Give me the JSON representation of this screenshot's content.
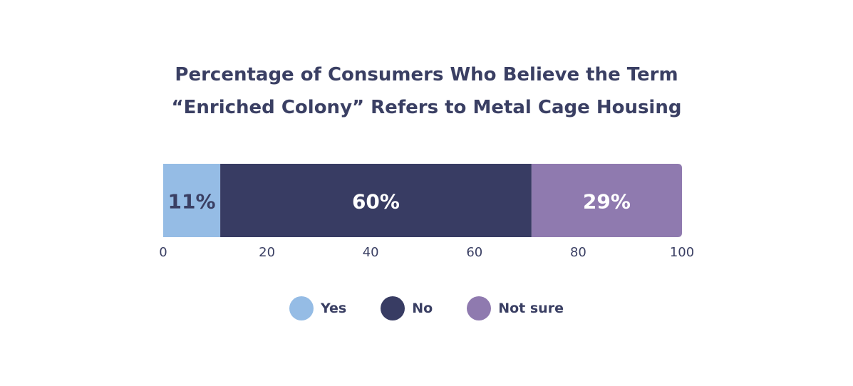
{
  "chart_data": {
    "type": "bar",
    "orientation": "horizontal",
    "stacked": true,
    "title": [
      "Percentage of Consumers Who Believe the Term",
      "“Enriched Colony” Refers to Metal Cage Housing"
    ],
    "series": [
      {
        "name": "Yes",
        "values": [
          11
        ],
        "label": "11%",
        "color": "#95bce5",
        "label_color": "#3a3f63"
      },
      {
        "name": "No",
        "values": [
          60
        ],
        "label": "60%",
        "color": "#383c63",
        "label_color": "#ffffff"
      },
      {
        "name": "Not sure",
        "values": [
          29
        ],
        "label": "29%",
        "color": "#8f7aaf",
        "label_color": "#ffffff"
      }
    ],
    "xlim": [
      0,
      100
    ],
    "xticks": [
      "0",
      "20",
      "40",
      "60",
      "80",
      "100"
    ],
    "grid": false,
    "legend_position": "bottom"
  }
}
